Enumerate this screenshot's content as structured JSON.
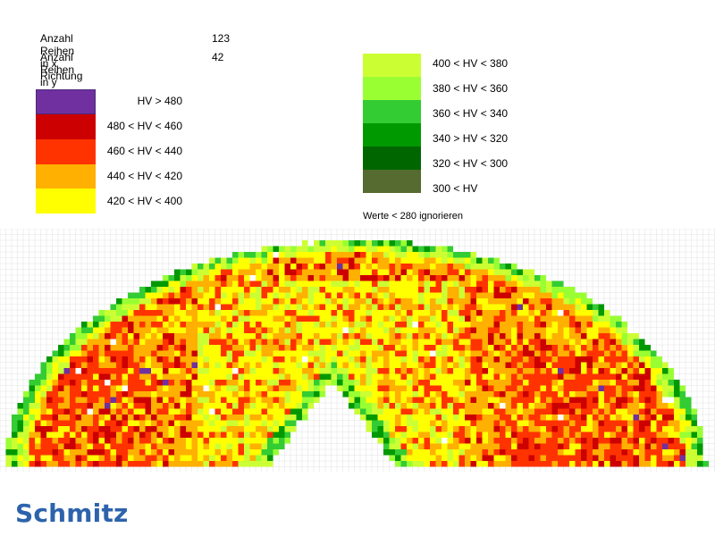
{
  "info": {
    "rows_x_label": "Anzahl Reihen in x  Richtung",
    "rows_x_value": "123",
    "rows_y_label": "Anzahl Reihen in y  Richtung",
    "rows_y_value": "42"
  },
  "legend": [
    {
      "label": "HV > 480",
      "color": "#7030a0"
    },
    {
      "label": "480 < HV < 460",
      "color": "#cc0000"
    },
    {
      "label": "460 < HV < 440",
      "color": "#ff3300"
    },
    {
      "label": "440 < HV < 420",
      "color": "#ffb000"
    },
    {
      "label": "420 < HV < 400",
      "color": "#ffff00"
    },
    {
      "label": "400 < HV < 380",
      "color": "#ccff33"
    },
    {
      "label": "380 < HV < 360",
      "color": "#99ff33"
    },
    {
      "label": "360 < HV < 340",
      "color": "#33cc33"
    },
    {
      "label": "340 > HV < 320",
      "color": "#009900"
    },
    {
      "label": "320 < HV < 300",
      "color": "#006600"
    },
    {
      "label": "300 < HV",
      "color": "#556b2f"
    }
  ],
  "note": "Werte < 280 ignorieren",
  "brand": "Schmitz",
  "chart_data": {
    "type": "heatmap",
    "columns": 123,
    "rows": 42,
    "grid": true,
    "description_of_distribution": "semicircular hardness map; highest values (HV > 460) concentrated at left and right lower edges; 420-440 dominant; 400-420 core in the middle; softer green zones (<360) along arch edge and around central notch"
  }
}
